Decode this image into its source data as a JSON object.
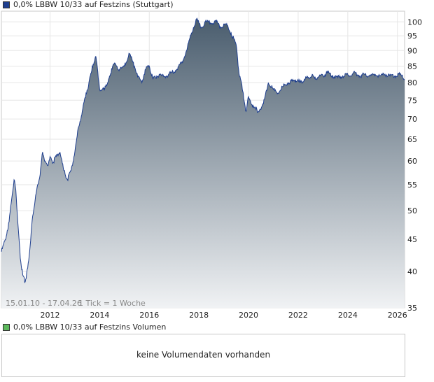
{
  "legend": {
    "price_label": "0,0% LBBW 10/33 auf Festzins (Stuttgart)",
    "price_color": "#1f3f8f",
    "volume_label": "0,0% LBBW 10/33 auf Festzins Volumen",
    "volume_color": "#5cb85c"
  },
  "info": {
    "range": "15.01.10 - 17.04.26",
    "tick": "1 Tick = 1 Woche"
  },
  "volume": {
    "message": "keine Volumendaten vorhanden"
  },
  "chart_data": {
    "type": "area",
    "title": "0,0% LBBW 10/33 auf Festzins (Stuttgart)",
    "xlabel": "",
    "ylabel": "",
    "yscale": "log",
    "ylim": [
      35,
      104
    ],
    "xlim": [
      2010.04,
      2026.29
    ],
    "x_ticks": [
      "2012",
      "2014",
      "2016",
      "2018",
      "2020",
      "2022",
      "2024",
      "2026"
    ],
    "y_ticks": [
      35,
      40,
      45,
      50,
      55,
      60,
      65,
      70,
      75,
      80,
      85,
      90,
      95,
      100
    ],
    "grid": true,
    "line_color": "#1f3f8f",
    "fill_top": "#4a5d6e",
    "fill_bottom": "#f0f2f4",
    "series": [
      {
        "x": [
          2010.04,
          2010.2,
          2010.35,
          2010.45,
          2010.55,
          2010.62,
          2010.7,
          2010.8,
          2010.9,
          2011.0,
          2011.1,
          2011.2,
          2011.3,
          2011.4,
          2011.5,
          2011.6,
          2011.7,
          2011.8,
          2011.9,
          2012.0,
          2012.1,
          2012.25,
          2012.4,
          2012.55,
          2012.7,
          2012.85,
          2013.0,
          2013.15,
          2013.3,
          2013.45,
          2013.55,
          2013.7,
          2013.85,
          2014.0,
          2014.2,
          2014.4,
          2014.6,
          2014.8,
          2015.0,
          2015.2,
          2015.4,
          2015.55,
          2015.7,
          2015.85,
          2016.0,
          2016.15,
          2016.3,
          2016.5,
          2016.7,
          2016.9,
          2017.1,
          2017.3,
          2017.5,
          2017.7,
          2017.9,
          2018.1,
          2018.3,
          2018.5,
          2018.7,
          2018.9,
          2019.1,
          2019.3,
          2019.5,
          2019.6,
          2019.75,
          2019.9,
          2020.0,
          2020.2,
          2020.4,
          2020.6,
          2020.8,
          2021.0,
          2021.2,
          2021.4,
          2021.6,
          2021.8,
          2022.0,
          2022.1,
          2022.25,
          2022.4,
          2022.55,
          2022.7,
          2022.85,
          2023.0,
          2023.2,
          2023.4,
          2023.6,
          2023.8,
          2023.95,
          2024.1,
          2024.3,
          2024.5,
          2024.7,
          2024.9,
          2025.1,
          2025.3,
          2025.5,
          2025.7,
          2025.9,
          2026.1,
          2026.29
        ],
        "values": [
          43,
          45,
          48,
          52,
          56,
          54,
          48,
          42,
          39.5,
          38.5,
          40.5,
          44,
          49,
          52,
          55,
          57,
          62,
          60,
          59,
          61,
          59.5,
          61,
          62,
          58,
          56,
          58,
          62,
          68,
          72,
          77,
          79,
          85,
          88,
          78,
          78,
          82,
          86,
          84,
          85,
          89,
          85,
          82,
          80,
          84,
          85,
          81,
          82,
          82,
          82,
          83,
          84,
          86,
          90,
          96,
          101,
          98,
          100,
          99.5,
          100,
          98,
          99,
          96,
          92,
          84,
          78,
          72,
          76,
          73,
          72,
          74,
          80,
          78,
          77,
          79,
          80,
          80.5,
          81,
          80,
          81,
          81.5,
          82,
          81,
          82,
          82,
          83,
          82,
          81.5,
          82,
          82.5,
          82,
          83,
          82,
          82.5,
          82,
          82.5,
          82,
          82.5,
          82,
          82,
          82.5,
          81
        ]
      }
    ]
  }
}
